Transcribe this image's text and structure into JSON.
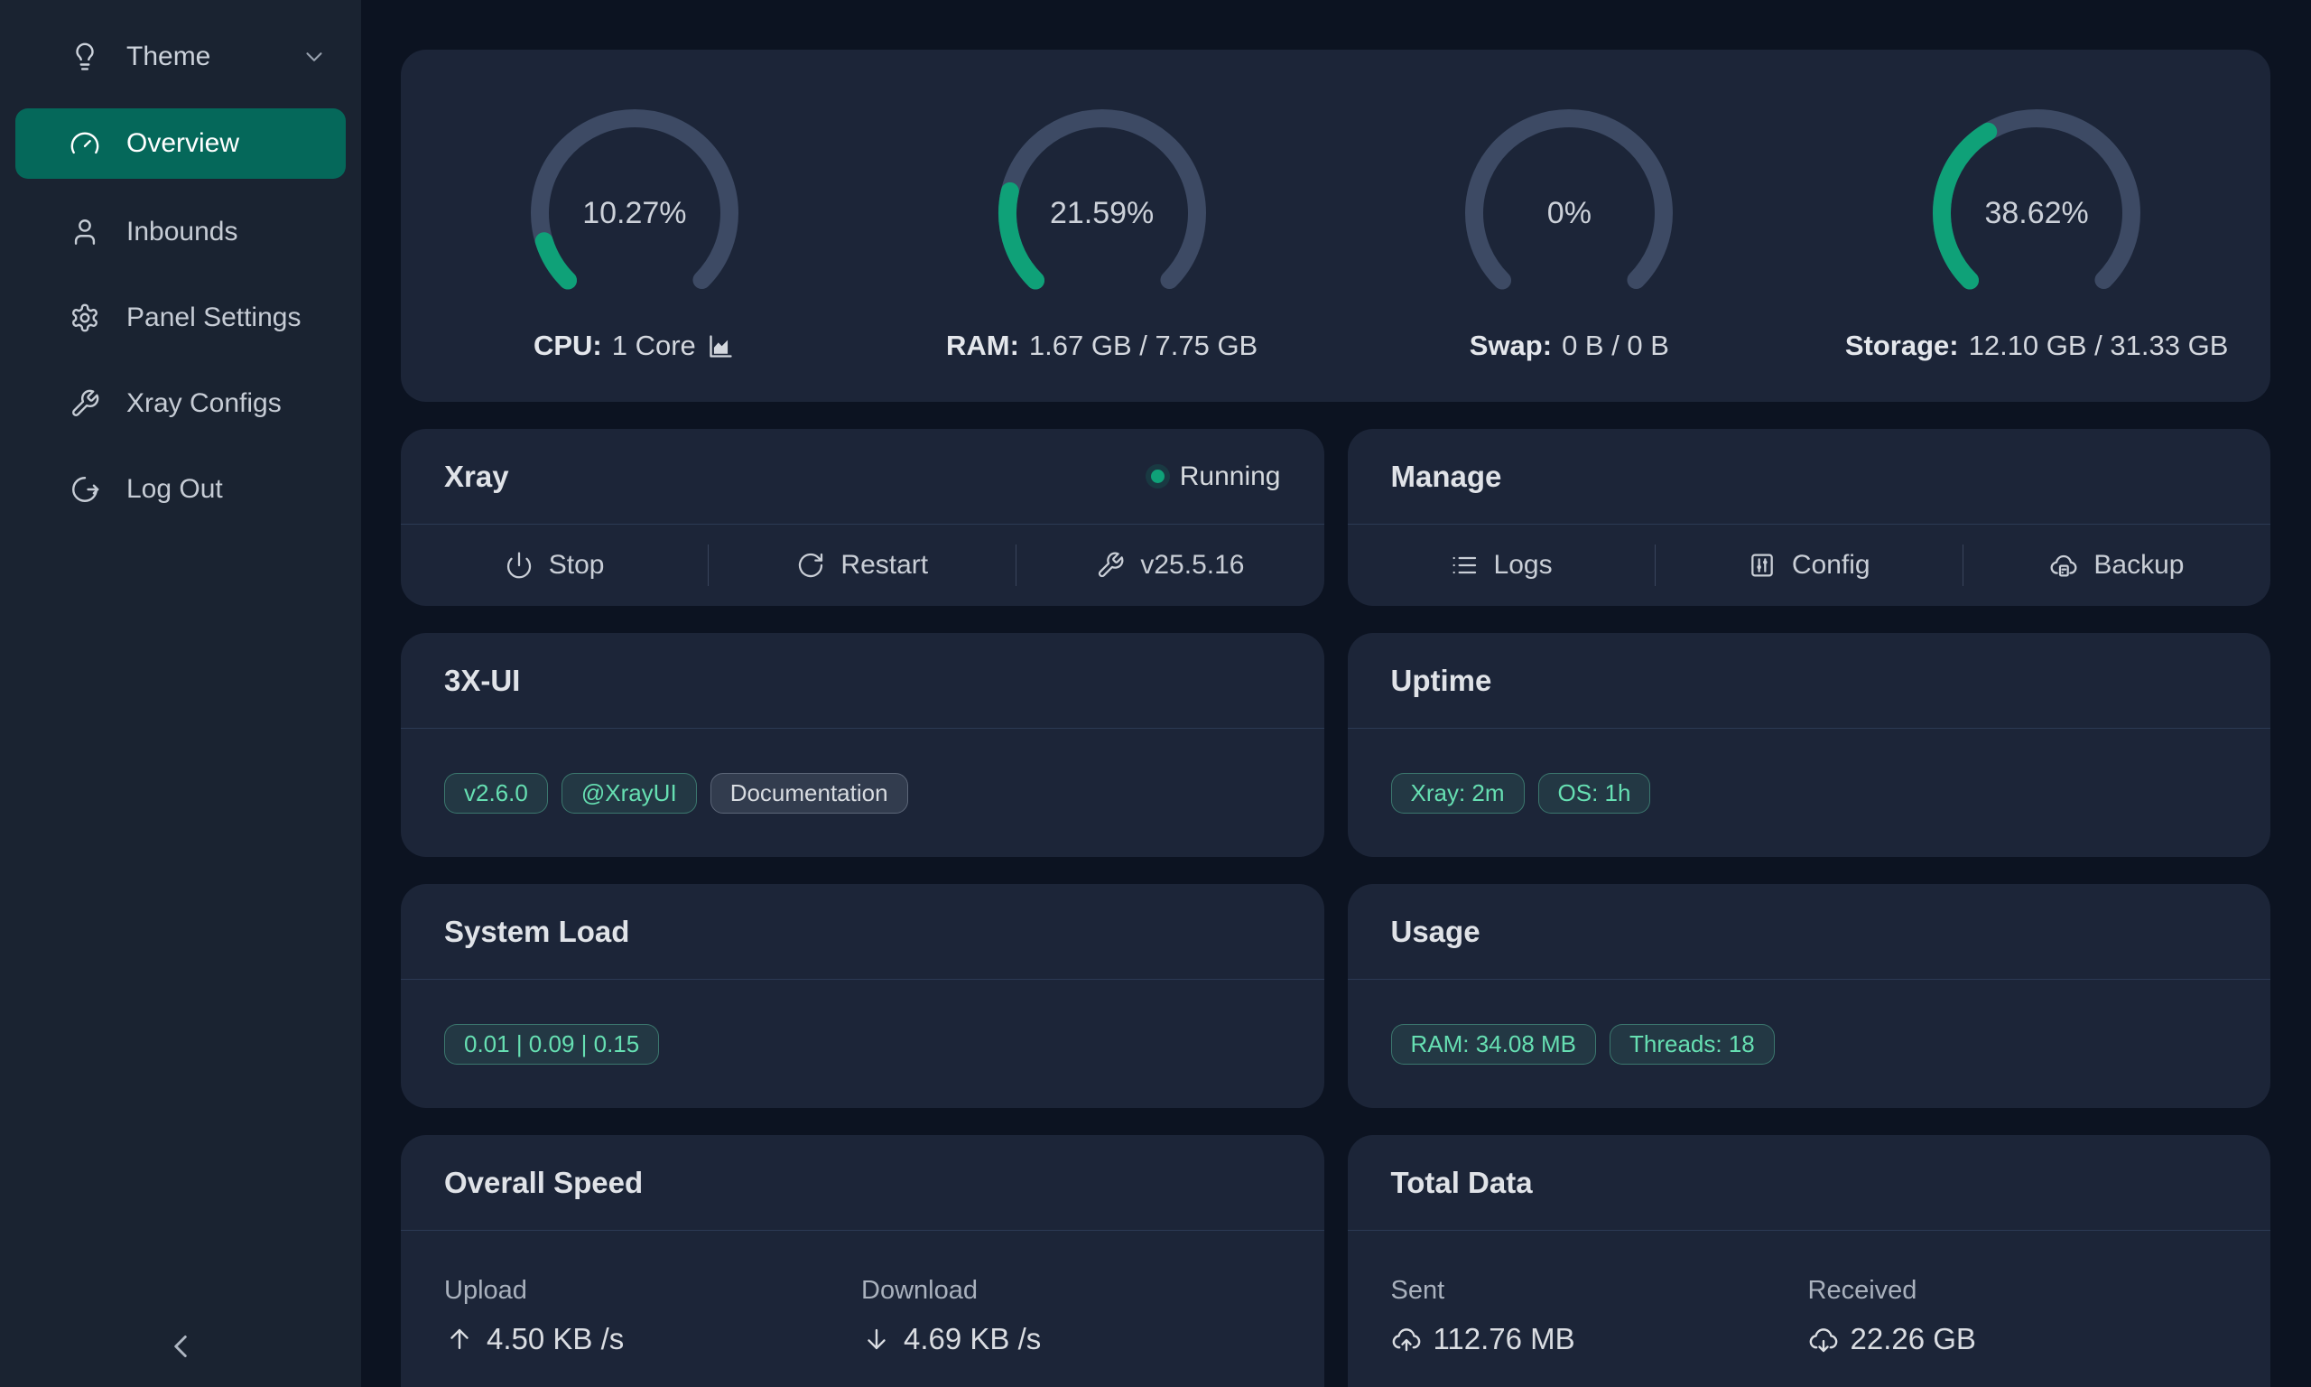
{
  "colors": {
    "page_bg": "#0c1321",
    "sidebar_bg": "#1a2331",
    "card_bg": "#1c2538",
    "accent_green": "#0fa178",
    "active_item_bg": "#05685a",
    "gauge_track": "#3d4a64",
    "tag_success_text": "#66dfb2"
  },
  "sidebar": {
    "theme_label": "Theme",
    "items": [
      {
        "label": "Overview",
        "icon": "gauge",
        "active": true
      },
      {
        "label": "Inbounds",
        "icon": "person",
        "active": false
      },
      {
        "label": "Panel Settings",
        "icon": "gear",
        "active": false
      },
      {
        "label": "Xray Configs",
        "icon": "wrench",
        "active": false
      },
      {
        "label": "Log Out",
        "icon": "logout",
        "active": false
      }
    ]
  },
  "gauges": [
    {
      "percent_text": "10.27%",
      "percent": 10.27,
      "label": "CPU:",
      "value": "1 Core",
      "chart_icon": true
    },
    {
      "percent_text": "21.59%",
      "percent": 21.59,
      "label": "RAM:",
      "value": "1.67 GB / 7.75 GB",
      "chart_icon": false
    },
    {
      "percent_text": "0%",
      "percent": 0,
      "label": "Swap:",
      "value": "0 B / 0 B",
      "chart_icon": false
    },
    {
      "percent_text": "38.62%",
      "percent": 38.62,
      "label": "Storage:",
      "value": "12.10 GB / 31.33 GB",
      "chart_icon": false
    }
  ],
  "cards": {
    "xray": {
      "title": "Xray",
      "status": "Running",
      "buttons": [
        {
          "label": "Stop",
          "icon": "power"
        },
        {
          "label": "Restart",
          "icon": "restart"
        },
        {
          "label": "v25.5.16",
          "icon": "wrench"
        }
      ]
    },
    "manage": {
      "title": "Manage",
      "buttons": [
        {
          "label": "Logs",
          "icon": "list"
        },
        {
          "label": "Config",
          "icon": "config"
        },
        {
          "label": "Backup",
          "icon": "backup"
        }
      ]
    },
    "xui": {
      "title": "3X-UI",
      "tags": [
        {
          "label": "v2.6.0",
          "type": "success",
          "link": true
        },
        {
          "label": "@XrayUI",
          "type": "success",
          "link": true
        },
        {
          "label": "Documentation",
          "type": "default",
          "link": true
        }
      ]
    },
    "uptime": {
      "title": "Uptime",
      "tags": [
        {
          "label": "Xray: 2m",
          "type": "success",
          "link": false
        },
        {
          "label": "OS: 1h",
          "type": "success",
          "link": false
        }
      ]
    },
    "system_load": {
      "title": "System Load",
      "tags": [
        {
          "label": "0.01 | 0.09 | 0.15",
          "type": "success",
          "link": false
        }
      ]
    },
    "usage": {
      "title": "Usage",
      "tags": [
        {
          "label": "RAM: 34.08 MB",
          "type": "success",
          "link": false
        },
        {
          "label": "Threads: 18",
          "type": "success",
          "link": false
        }
      ]
    },
    "overall_speed": {
      "title": "Overall Speed",
      "stats": [
        {
          "label": "Upload",
          "value": "4.50 KB /s",
          "icon": "arrow-up"
        },
        {
          "label": "Download",
          "value": "4.69 KB /s",
          "icon": "arrow-down"
        }
      ]
    },
    "total_data": {
      "title": "Total Data",
      "stats": [
        {
          "label": "Sent",
          "value": "112.76 MB",
          "icon": "cloud-up"
        },
        {
          "label": "Received",
          "value": "22.26 GB",
          "icon": "cloud-down"
        }
      ]
    }
  }
}
